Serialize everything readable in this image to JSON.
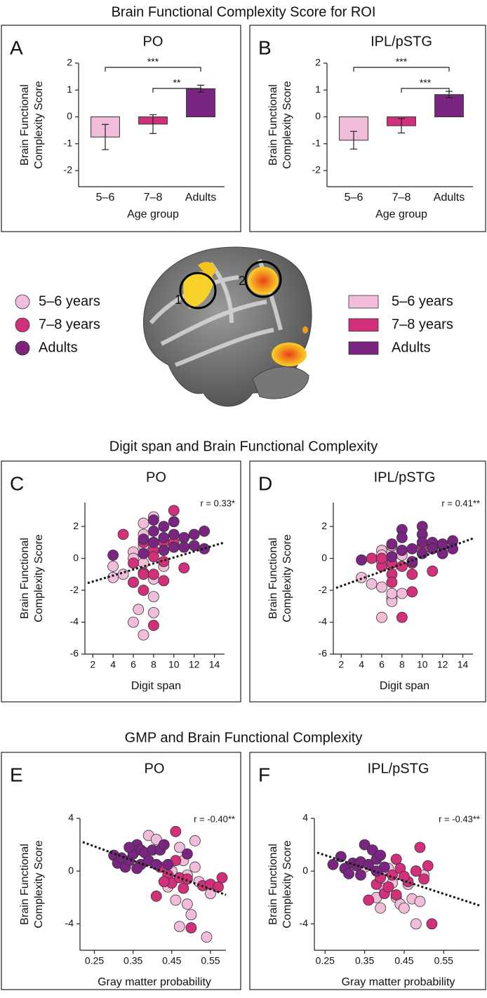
{
  "headings": [
    "Brain Functional Complexity Score for ROI",
    "Digit span and Brain Functional Complexity",
    "GMP and Brain Functional Complexity"
  ],
  "brain": {
    "labels": [
      "1",
      "2"
    ]
  },
  "legend": {
    "labels": [
      "5–6 years",
      "7–8 years",
      "Adults"
    ],
    "colors": [
      "#f2bcdb",
      "#d3307c",
      "#7a2581"
    ]
  },
  "chart_data": [
    {
      "type": "bar",
      "panel": "A",
      "title": "PO",
      "xlabel": "Age group",
      "ylabel": [
        "Brain Functional",
        "Complexity Score"
      ],
      "categories": [
        "5–6",
        "7–8",
        "Adults"
      ],
      "values": [
        -0.75,
        -0.27,
        1.05
      ],
      "errors": [
        0.47,
        0.35,
        0.13
      ],
      "colors": [
        "#f2bcdb",
        "#d3307c",
        "#7a2581"
      ],
      "ylim": [
        -2.6,
        2
      ],
      "yticks": [
        -2,
        -1,
        0,
        1,
        2
      ],
      "brackets": [
        {
          "label": "***",
          "between": [
            "5–6",
            "Adults"
          ]
        },
        {
          "label": "**",
          "between": [
            "7–8",
            "Adults"
          ]
        }
      ]
    },
    {
      "type": "bar",
      "panel": "B",
      "title": "IPL/pSTG",
      "xlabel": "Age group",
      "ylabel": [
        "Brain Functional",
        "Complexity Score"
      ],
      "categories": [
        "5–6",
        "7–8",
        "Adults"
      ],
      "values": [
        -0.87,
        -0.33,
        0.83
      ],
      "errors": [
        0.33,
        0.27,
        0.12
      ],
      "colors": [
        "#f2bcdb",
        "#d3307c",
        "#7a2581"
      ],
      "ylim": [
        -2.6,
        2
      ],
      "yticks": [
        -2,
        -1,
        0,
        1,
        2
      ],
      "brackets": [
        {
          "label": "***",
          "between": [
            "5–6",
            "Adults"
          ]
        },
        {
          "label": "***",
          "between": [
            "7–8",
            "Adults"
          ]
        }
      ]
    },
    {
      "type": "scatter",
      "panel": "C",
      "title": "PO",
      "annotation": "r = 0.33*",
      "xlabel": "Digit span",
      "ylabel": [
        "Brain Functional",
        "Complexity Score"
      ],
      "xlim": [
        1.5,
        15
      ],
      "xticks": [
        2,
        4,
        6,
        8,
        10,
        12,
        14
      ],
      "ylim": [
        -6,
        3.5
      ],
      "yticks": [
        -6,
        -4,
        -2,
        0,
        2
      ],
      "fit": {
        "x": [
          1.5,
          15
        ],
        "y": [
          -1.55,
          1.0
        ]
      },
      "series": [
        {
          "color": "#f2bcdb",
          "x": [
            4,
            4,
            5,
            6,
            6,
            6,
            6.5,
            7,
            7,
            7,
            7,
            8,
            8,
            8,
            8,
            7.5,
            9,
            6,
            8,
            7
          ],
          "y": [
            -0.5,
            -1.2,
            -1.0,
            0.4,
            0,
            -4.0,
            -3.2,
            2.2,
            1.5,
            -4.8,
            -0.3,
            2.6,
            -2.4,
            -1.3,
            1.0,
            0.5,
            -0.5,
            -1.5,
            -3.4,
            0.8
          ]
        },
        {
          "color": "#d3307c",
          "x": [
            5,
            6,
            6,
            7,
            7,
            7,
            8,
            8,
            8,
            9,
            9,
            9,
            10,
            10,
            11,
            7,
            8
          ],
          "y": [
            1.5,
            -0.3,
            -1.5,
            1.0,
            -0.9,
            -1.0,
            -4.2,
            -1.0,
            0.5,
            -0.2,
            -1.4,
            1.0,
            3.0,
            1.0,
            -0.6,
            -2.0,
            0.1
          ]
        },
        {
          "color": "#7a2581",
          "x": [
            4,
            7,
            7,
            8,
            8,
            8,
            9,
            9,
            9,
            10,
            10,
            10,
            11,
            11,
            12,
            12,
            13,
            13
          ],
          "y": [
            0.2,
            1.2,
            0.3,
            2.4,
            1.7,
            1.0,
            2.0,
            1.3,
            0.5,
            2.3,
            1.5,
            0.7,
            1.3,
            0.7,
            1.5,
            0.8,
            1.7,
            0.6
          ]
        }
      ]
    },
    {
      "type": "scatter",
      "panel": "D",
      "title": "IPL/pSTG",
      "annotation": "r = 0.41**",
      "xlabel": "Digit span",
      "ylabel": [
        "Brain Functional",
        "Complexity Score"
      ],
      "xlim": [
        1.5,
        15
      ],
      "xticks": [
        2,
        4,
        6,
        8,
        10,
        12,
        14
      ],
      "ylim": [
        -6,
        3.5
      ],
      "yticks": [
        -6,
        -4,
        -2,
        0,
        2
      ],
      "fit": {
        "x": [
          1.5,
          15
        ],
        "y": [
          -1.85,
          1.25
        ]
      },
      "series": [
        {
          "color": "#f2bcdb",
          "x": [
            4,
            5,
            6,
            6,
            6,
            6,
            7,
            7,
            7,
            7,
            8,
            7,
            6,
            8,
            7
          ],
          "y": [
            -1.2,
            -1.6,
            -3.7,
            0.5,
            0.2,
            -0.2,
            -2.5,
            -2.7,
            -2.2,
            0.4,
            -2.2,
            -0.5,
            -1.8,
            0.2,
            0.8
          ]
        },
        {
          "color": "#d3307c",
          "x": [
            5,
            6,
            7,
            7,
            8,
            8,
            9,
            9,
            9,
            10,
            11,
            7,
            8,
            6
          ],
          "y": [
            0,
            -0.5,
            -1.0,
            -1.5,
            -3.7,
            0.5,
            -0.3,
            -2.1,
            -1.0,
            0.8,
            -0.8,
            -0.3,
            -0.5,
            0
          ]
        },
        {
          "color": "#7a2581",
          "x": [
            4,
            7,
            7,
            8,
            8,
            8,
            9,
            9,
            10,
            10,
            10,
            10,
            11,
            11,
            12,
            12,
            13,
            13,
            12
          ],
          "y": [
            -0.1,
            0.9,
            0.1,
            1.8,
            1.3,
            0.5,
            0.6,
            -0.2,
            2.0,
            1.5,
            1.0,
            0.3,
            1.0,
            0.6,
            0.8,
            0.3,
            1.1,
            0.6,
            0.9
          ]
        }
      ]
    },
    {
      "type": "scatter",
      "panel": "E",
      "title": "PO",
      "annotation": "r = -0.40**",
      "xlabel": "Gray matter probability",
      "ylabel": [
        "Brain Functional",
        "Complexity Score"
      ],
      "xlim": [
        0.22,
        0.59
      ],
      "xticks": [
        0.25,
        0.35,
        0.45,
        0.55
      ],
      "ylim": [
        -6,
        4
      ],
      "yticks": [
        -4,
        0,
        4
      ],
      "fit": {
        "x": [
          0.22,
          0.59
        ],
        "y": [
          2.2,
          -1.8
        ]
      },
      "series": [
        {
          "color": "#f2bcdb",
          "x": [
            0.39,
            0.41,
            0.44,
            0.45,
            0.46,
            0.47,
            0.48,
            0.49,
            0.49,
            0.5,
            0.51,
            0.51,
            0.47,
            0.54,
            0.55,
            0.52
          ],
          "y": [
            2.7,
            2.4,
            -1.2,
            0,
            -2.2,
            1.8,
            0.8,
            -0.3,
            -2.5,
            -3.3,
            2.3,
            0.3,
            -4.2,
            -5.0,
            -1.7,
            -0.8
          ]
        },
        {
          "color": "#d3307c",
          "x": [
            0.41,
            0.42,
            0.44,
            0.45,
            0.46,
            0.46,
            0.47,
            0.48,
            0.49,
            0.5,
            0.53,
            0.55,
            0.57,
            0.58,
            0.43
          ],
          "y": [
            -1.9,
            0.3,
            -0.3,
            -0.9,
            0.8,
            3.0,
            -0.5,
            -1.3,
            -0.6,
            -4.3,
            -1.1,
            -1.0,
            -1.2,
            -0.5,
            -0.8
          ]
        },
        {
          "color": "#7a2581",
          "x": [
            0.3,
            0.31,
            0.32,
            0.33,
            0.34,
            0.35,
            0.36,
            0.37,
            0.37,
            0.38,
            0.39,
            0.4,
            0.41,
            0.42,
            0.43,
            0.44,
            0.36,
            0.49,
            0.34
          ],
          "y": [
            1.2,
            0.6,
            1.0,
            0.3,
            0.8,
            1.3,
            2.0,
            1.6,
            0.5,
            1.4,
            0.8,
            1.6,
            0.5,
            1.6,
            2.0,
            0.5,
            0.2,
            1.3,
            1.8
          ]
        }
      ]
    },
    {
      "type": "scatter",
      "panel": "F",
      "title": "IPL/pSTG",
      "annotation": "r = -0.43**",
      "xlabel": "Gray matter probability",
      "ylabel": [
        "Brain Functional",
        "Complexity Score"
      ],
      "xlim": [
        0.23,
        0.64
      ],
      "xticks": [
        0.25,
        0.35,
        0.45,
        0.55
      ],
      "ylim": [
        -6,
        4
      ],
      "yticks": [
        -4,
        0,
        4
      ],
      "fit": {
        "x": [
          0.23,
          0.64
        ],
        "y": [
          1.4,
          -2.6
        ]
      },
      "series": [
        {
          "color": "#f2bcdb",
          "x": [
            0.35,
            0.38,
            0.39,
            0.4,
            0.41,
            0.42,
            0.43,
            0.44,
            0.45,
            0.46,
            0.47,
            0.48,
            0.48,
            0.49,
            0.5
          ],
          "y": [
            0.3,
            -2.0,
            -2.8,
            -1.3,
            0.2,
            -0.9,
            -2.0,
            -2.5,
            -2.8,
            -1.0,
            -2.1,
            0,
            -4.0,
            -2.3,
            -0.3
          ]
        },
        {
          "color": "#d3307c",
          "x": [
            0.36,
            0.38,
            0.39,
            0.4,
            0.41,
            0.42,
            0.43,
            0.43,
            0.44,
            0.46,
            0.48,
            0.49,
            0.5,
            0.51,
            0.52,
            0.45
          ],
          "y": [
            -2.2,
            -1.0,
            -0.5,
            -1.7,
            -1.2,
            -0.3,
            0.9,
            -1.8,
            0.2,
            -0.8,
            0,
            1.8,
            -0.6,
            0.4,
            -4.0,
            -0.4
          ]
        },
        {
          "color": "#7a2581",
          "x": [
            0.27,
            0.29,
            0.3,
            0.31,
            0.32,
            0.33,
            0.34,
            0.35,
            0.36,
            0.37,
            0.38,
            0.39,
            0.4,
            0.34,
            0.38
          ],
          "y": [
            0.5,
            1.1,
            0.2,
            -0.2,
            0.6,
            0.4,
            0.7,
            2.0,
            0.5,
            1.6,
            0.9,
            1.2,
            0.3,
            -0.3,
            0
          ]
        }
      ]
    }
  ]
}
